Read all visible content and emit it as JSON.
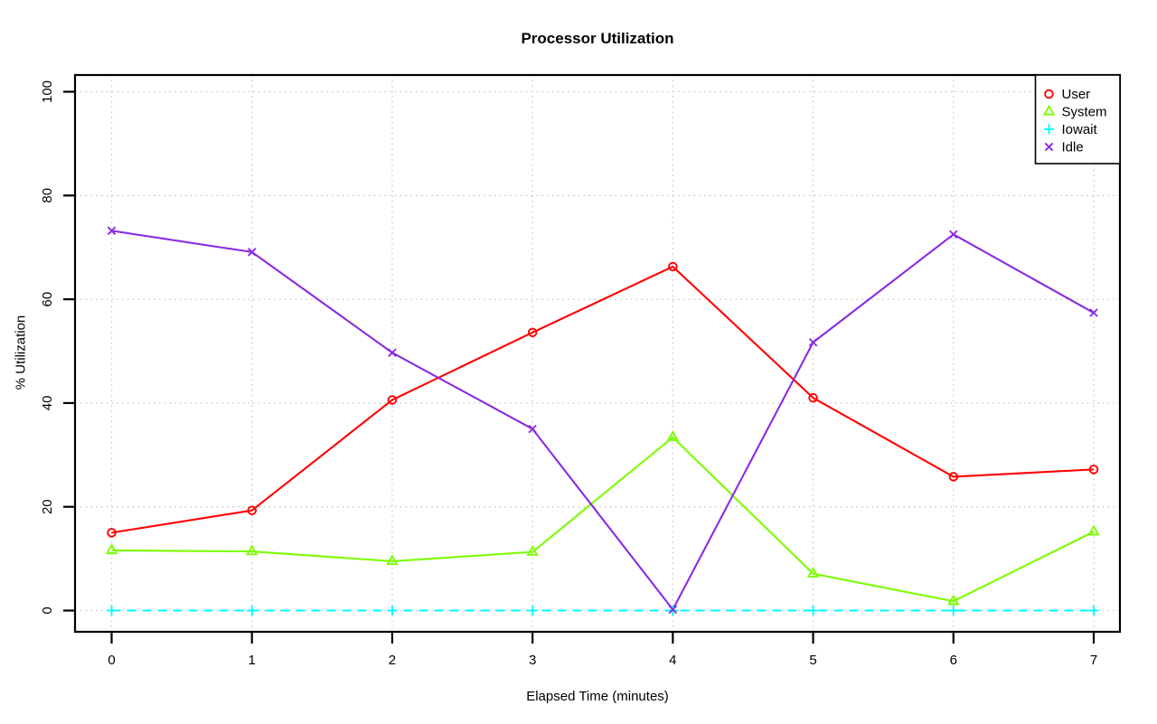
{
  "figure": {
    "title": "Processor Utilization",
    "xlabel": "Elapsed Time (minutes)",
    "ylabel": "% Utilization"
  },
  "chart_data": {
    "type": "line",
    "title": "Processor Utilization",
    "xlabel": "Elapsed Time (minutes)",
    "ylabel": "% Utilization",
    "x": [
      0,
      1,
      2,
      3,
      4,
      5,
      6,
      7
    ],
    "xlim": [
      0,
      7
    ],
    "ylim": [
      0,
      100
    ],
    "xticks": [
      "0",
      "1",
      "2",
      "3",
      "4",
      "5",
      "6",
      "7"
    ],
    "yticks": [
      "0",
      "20",
      "40",
      "60",
      "80",
      "100"
    ],
    "grid": true,
    "grid_style": "dotted",
    "grid_color": "#c9c9c9",
    "axis_color": "#000000",
    "legend_position": "topright",
    "series": [
      {
        "name": "User",
        "color": "#ff0000",
        "marker": "circle",
        "line": "solid",
        "values": [
          15.0,
          19.3,
          40.6,
          53.6,
          66.3,
          41.0,
          25.8,
          27.2
        ]
      },
      {
        "name": "System",
        "color": "#7cfc00",
        "marker": "triangle",
        "line": "solid",
        "values": [
          11.6,
          11.4,
          9.5,
          11.3,
          33.4,
          7.1,
          1.8,
          15.2
        ]
      },
      {
        "name": "Iowait",
        "color": "#00ffff",
        "marker": "plus",
        "line": "dashed",
        "values": [
          0,
          0,
          0,
          0,
          0,
          0,
          0,
          0
        ]
      },
      {
        "name": "Idle",
        "color": "#8a2be2",
        "marker": "x",
        "line": "solid",
        "values": [
          73.2,
          69.1,
          49.7,
          35.0,
          0.2,
          51.7,
          72.5,
          57.4
        ]
      }
    ]
  }
}
